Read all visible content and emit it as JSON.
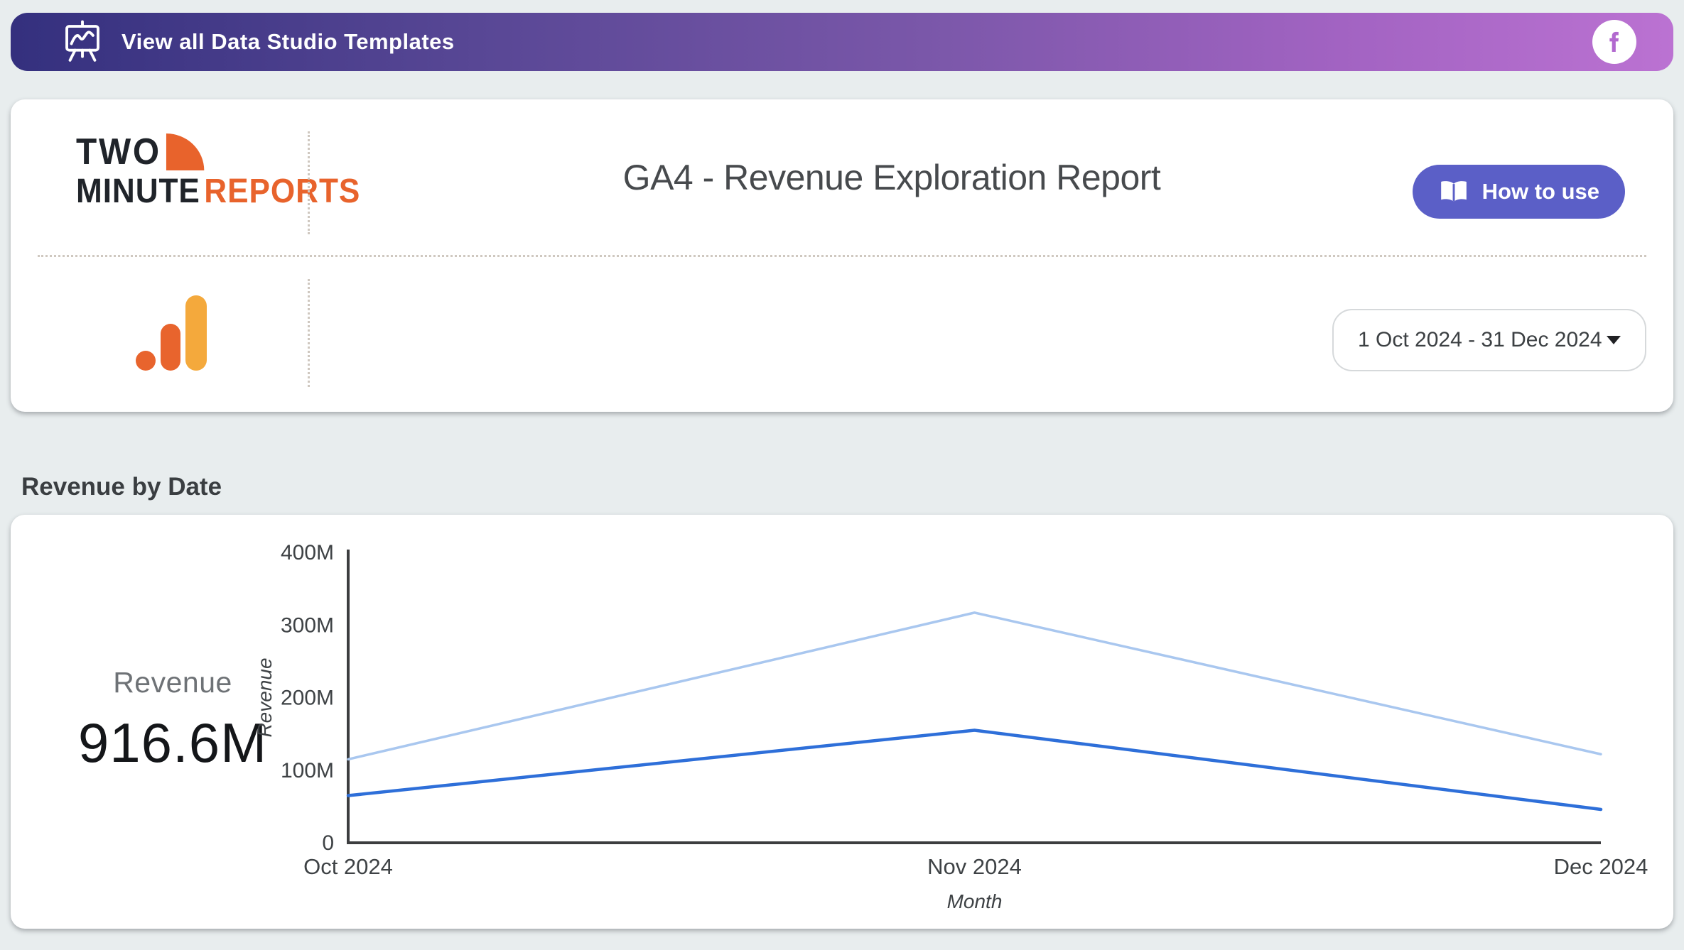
{
  "banner": {
    "label": "View all Data Studio Templates",
    "gradient": [
      "#34307e",
      "#7a57a9",
      "#bb72d2"
    ],
    "facebook_color": "#b269cf"
  },
  "header": {
    "logo": {
      "word1": "TWO",
      "word2": "MINUTE",
      "word3": "REPORTS",
      "accent": "#e8632c"
    },
    "title": "GA4 - Revenue Exploration Report",
    "how_to_use": {
      "label": "How to use",
      "color": "#5b5fc7"
    },
    "date_range": {
      "value": "1 Oct 2024 - 31 Dec 2024"
    },
    "source_icon": "google-analytics",
    "ga_colors": {
      "bars": "#e8642d",
      "tall_bar": "#f4a93c"
    }
  },
  "section": {
    "heading": "Revenue by Date"
  },
  "scorecard": {
    "label": "Revenue",
    "value": "916.6M"
  },
  "chart_data": {
    "type": "line",
    "title": "Revenue by Date",
    "categories": [
      "Oct 2024",
      "Nov 2024",
      "Dec 2024"
    ],
    "series": [
      {
        "name": "revenue-light",
        "color": "#a9c7ef",
        "width": 3.5,
        "values": [
          115,
          317,
          122
        ]
      },
      {
        "name": "revenue-dark",
        "color": "#2e6fd9",
        "width": 4.5,
        "values": [
          65,
          155,
          46
        ]
      }
    ],
    "unit": "M",
    "xlabel": "Month",
    "ylabel": "Revenue",
    "ylim": [
      0,
      400
    ],
    "yticks": [
      {
        "value": 0,
        "label": "0"
      },
      {
        "value": 100,
        "label": "100M"
      },
      {
        "value": 200,
        "label": "200M"
      },
      {
        "value": 300,
        "label": "300M"
      },
      {
        "value": 400,
        "label": "400M"
      }
    ],
    "grid": false,
    "legend": "none",
    "axis_color": "#3c3d3f"
  }
}
